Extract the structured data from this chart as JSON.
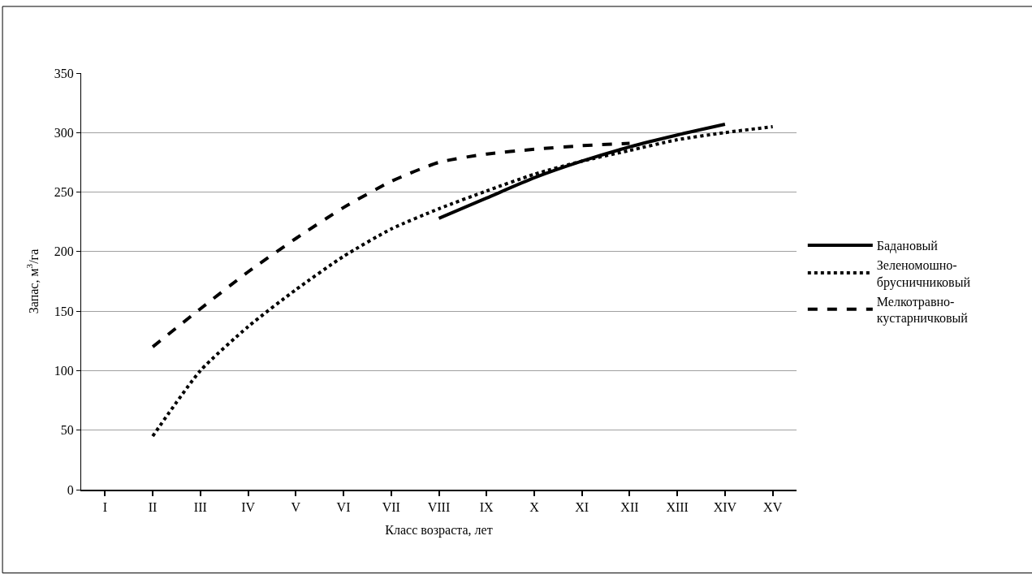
{
  "chart_data": {
    "type": "line",
    "xlabel": "Класс возраста, лет",
    "ylabel": "Запас, м$^{3}$/га",
    "categories": [
      "I",
      "II",
      "III",
      "IV",
      "V",
      "VI",
      "VII",
      "VIII",
      "IX",
      "X",
      "XI",
      "XII",
      "XIII",
      "XIV",
      "XV"
    ],
    "ylim": [
      0,
      350
    ],
    "yticks": [
      0,
      50,
      100,
      150,
      200,
      250,
      300,
      350
    ],
    "grid": "y",
    "legend": "right",
    "marker": "none",
    "series": [
      {
        "name": "Бадановый",
        "color": "#000000",
        "line_style": "solid",
        "values": [
          null,
          null,
          null,
          null,
          null,
          null,
          null,
          228,
          245,
          262,
          276,
          288,
          298,
          307,
          null
        ]
      },
      {
        "name": "Зеленомошно-брусничниковый",
        "color": "#000000",
        "line_style": "dotted",
        "values": [
          null,
          45,
          100,
          137,
          168,
          196,
          219,
          236,
          251,
          265,
          276,
          285,
          294,
          300,
          305
        ]
      },
      {
        "name": "Мелкотравно-кустарничковый",
        "color": "#000000",
        "line_style": "dashed",
        "values": [
          null,
          120,
          152,
          183,
          211,
          237,
          259,
          275,
          282,
          286,
          289,
          291,
          null,
          null,
          null
        ]
      }
    ]
  }
}
